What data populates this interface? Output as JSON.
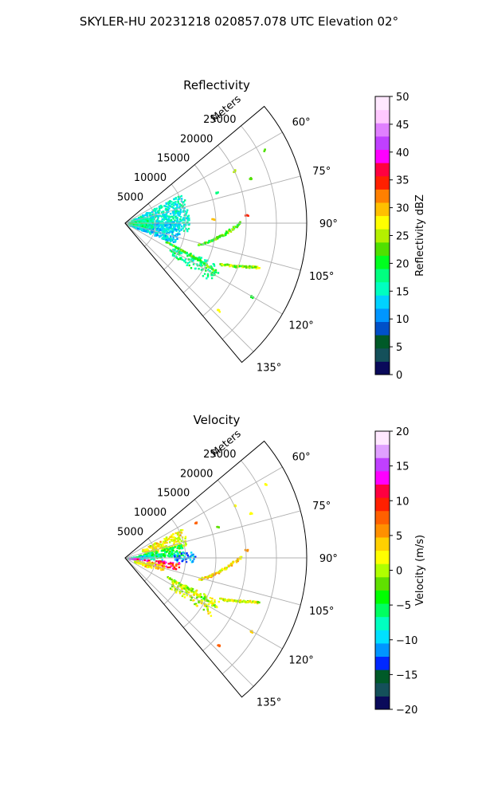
{
  "figure_title": "SKYLER-HU  20231218  020857.078 UTC Elevation 02°",
  "colors": {
    "grid": "#b0b0b0",
    "axis": "#000000"
  },
  "chart_data": [
    {
      "type": "polar-sector",
      "title": "Reflectivity",
      "radial_axis_label": "Meters",
      "theta_range_deg": [
        50,
        140
      ],
      "r_max": 30000,
      "r_ticks": [
        5000,
        10000,
        15000,
        20000,
        25000
      ],
      "r_tick_labels": [
        "5000",
        "10000",
        "15000",
        "20000",
        "25000"
      ],
      "theta_ticks": [
        60,
        75,
        90,
        105,
        120,
        135
      ],
      "theta_tick_labels": [
        "60°",
        "75°",
        "90°",
        "105°",
        "120°",
        "135°"
      ],
      "grid": true,
      "colorbar": {
        "label": "Reflectivity dBZ",
        "min": 0,
        "max": 50,
        "ticks": [
          0,
          5,
          10,
          15,
          20,
          25,
          30,
          35,
          40,
          45,
          50
        ],
        "tick_labels": [
          "0",
          "5",
          "10",
          "15",
          "20",
          "25",
          "30",
          "35",
          "40",
          "45",
          "50"
        ],
        "stops": [
          "#0a0a5a",
          "#14505a",
          "#005a28",
          "#0050c8",
          "#0096ff",
          "#00d2ff",
          "#00ffc0",
          "#00ff80",
          "#00ff20",
          "#50e000",
          "#b4f000",
          "#ffff00",
          "#ffc000",
          "#ff8000",
          "#ff2000",
          "#ff0040",
          "#ff00ff",
          "#c040ff",
          "#e080ff",
          "#ffc8ff",
          "#ffe8ff"
        ]
      },
      "echo_regions": [
        {
          "r": [
            500,
            10500
          ],
          "theta": [
            62,
            98
          ],
          "value": 15
        },
        {
          "r": [
            500,
            9000
          ],
          "theta": [
            88,
            112
          ],
          "value": 13
        },
        {
          "r": [
            300,
            4500
          ],
          "theta": [
            78,
            100
          ],
          "value": 17
        },
        {
          "r": [
            8500,
            17000
          ],
          "theta": [
            114,
            124
          ],
          "value": 17
        }
      ],
      "echo_lines": [
        {
          "from": [
            7500,
            114
          ],
          "to": [
            17000,
            118
          ],
          "value": 21
        },
        {
          "from": [
            12500,
            106
          ],
          "to": [
            19000,
            89
          ],
          "value": 22
        },
        {
          "from": [
            17000,
            113
          ],
          "to": [
            23000,
            108
          ],
          "value": 24
        }
      ],
      "echo_points": [
        {
          "r": 26000,
          "theta": 62,
          "value": 22
        },
        {
          "r": 20000,
          "theta": 64,
          "value": 24
        },
        {
          "r": 22000,
          "theta": 70,
          "value": 23
        },
        {
          "r": 16000,
          "theta": 71,
          "value": 18
        },
        {
          "r": 20000,
          "theta": 86,
          "value": 34
        },
        {
          "r": 24000,
          "theta": 120,
          "value": 20
        },
        {
          "r": 21000,
          "theta": 133,
          "value": 27
        },
        {
          "r": 14500,
          "theta": 87,
          "value": 30
        }
      ]
    },
    {
      "type": "polar-sector",
      "title": "Velocity",
      "radial_axis_label": "Meters",
      "theta_range_deg": [
        50,
        140
      ],
      "r_max": 30000,
      "r_ticks": [
        5000,
        10000,
        15000,
        20000,
        25000
      ],
      "r_tick_labels": [
        "5000",
        "10000",
        "15000",
        "20000",
        "25000"
      ],
      "theta_ticks": [
        60,
        75,
        90,
        105,
        120,
        135
      ],
      "theta_tick_labels": [
        "60°",
        "75°",
        "90°",
        "105°",
        "120°",
        "135°"
      ],
      "grid": true,
      "colorbar": {
        "label": "Velocity (m/s)",
        "min": -20,
        "max": 20,
        "ticks": [
          -20,
          -15,
          -10,
          -5,
          0,
          5,
          10,
          15,
          20
        ],
        "tick_labels": [
          "−20",
          "−15",
          "−10",
          "−5",
          "0",
          "5",
          "10",
          "15",
          "20"
        ],
        "stops": [
          "#0a0a5a",
          "#14505a",
          "#005a28",
          "#0028ff",
          "#0096ff",
          "#00e0ff",
          "#00ffc0",
          "#00ff60",
          "#00ff00",
          "#60e000",
          "#b0ff00",
          "#ffff00",
          "#ffd000",
          "#ff9000",
          "#ff6000",
          "#ff2000",
          "#ff0040",
          "#ff00ff",
          "#c040ff",
          "#e0a0ff",
          "#ffe8ff"
        ]
      },
      "echo_regions": [
        {
          "r": [
            3000,
            10500
          ],
          "theta": [
            62,
            78
          ],
          "value": 2
        },
        {
          "r": [
            2000,
            9500
          ],
          "theta": [
            76,
            88
          ],
          "value": -5
        },
        {
          "r": [
            500,
            6000
          ],
          "theta": [
            82,
            92
          ],
          "value": -7
        },
        {
          "r": [
            8000,
            11500
          ],
          "theta": [
            84,
            93
          ],
          "value": -11
        },
        {
          "r": [
            300,
            3500
          ],
          "theta": [
            80,
            90
          ],
          "value": -9
        },
        {
          "r": [
            500,
            4000
          ],
          "theta": [
            92,
            96
          ],
          "value": 14
        },
        {
          "r": [
            5000,
            9000
          ],
          "theta": [
            94,
            102
          ],
          "value": 11
        },
        {
          "r": [
            3500,
            6500
          ],
          "theta": [
            97,
            108
          ],
          "value": 4
        },
        {
          "r": [
            1500,
            4500
          ],
          "theta": [
            100,
            112
          ],
          "value": 2
        },
        {
          "r": [
            8500,
            17000
          ],
          "theta": [
            114,
            124
          ],
          "value": 1
        }
      ],
      "echo_lines": [
        {
          "from": [
            7500,
            114
          ],
          "to": [
            17000,
            118
          ],
          "value": 0
        },
        {
          "from": [
            12500,
            106
          ],
          "to": [
            19000,
            89
          ],
          "value": 3
        },
        {
          "from": [
            17000,
            113
          ],
          "to": [
            23000,
            108
          ],
          "value": 1
        }
      ],
      "echo_points": [
        {
          "r": 26000,
          "theta": 62,
          "value": 1
        },
        {
          "r": 20000,
          "theta": 64,
          "value": 2
        },
        {
          "r": 22000,
          "theta": 70,
          "value": 1
        },
        {
          "r": 16000,
          "theta": 71,
          "value": -1
        },
        {
          "r": 20000,
          "theta": 86,
          "value": 5
        },
        {
          "r": 24000,
          "theta": 120,
          "value": 4
        },
        {
          "r": 21000,
          "theta": 133,
          "value": 8
        },
        {
          "r": 13000,
          "theta": 63,
          "value": 8
        }
      ]
    }
  ]
}
